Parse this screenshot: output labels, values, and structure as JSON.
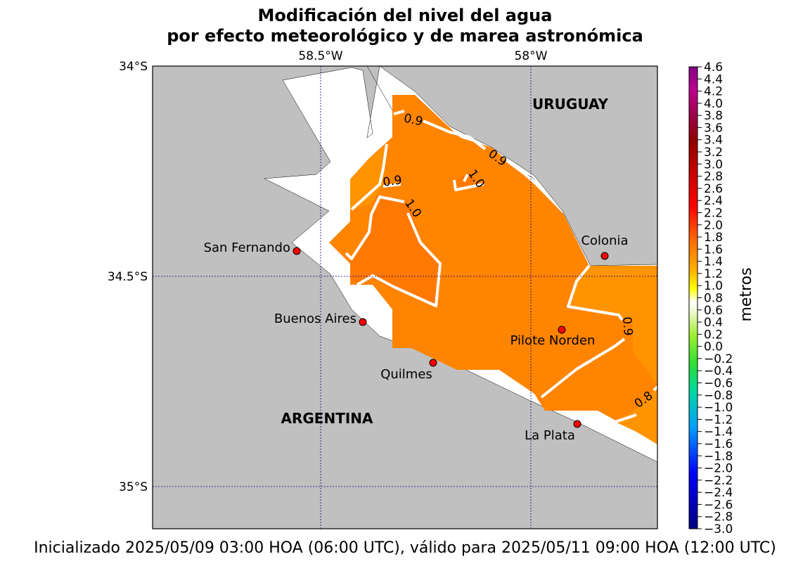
{
  "title": {
    "line1": "Modificación del nivel del agua",
    "line2": "por efecto meteorológico y de marea astronómica"
  },
  "footer": "Inicializado 2025/05/09 03:00 HOA (06:00 UTC), válido para 2025/05/11 09:00 HOA (12:00 UTC)",
  "map": {
    "lon_labels": [
      "58.5°W",
      "58°W"
    ],
    "lat_labels": [
      "34°S",
      "34.5°S",
      "35°S"
    ],
    "countries": [
      "URUGUAY",
      "ARGENTINA"
    ],
    "stations": [
      {
        "name": "San Fernando"
      },
      {
        "name": "Buenos Aires"
      },
      {
        "name": "Quilmes"
      },
      {
        "name": "Colonia"
      },
      {
        "name": "Pilote Norden"
      },
      {
        "name": "La Plata"
      }
    ],
    "contour_labels": [
      "0.9",
      "0.9",
      "0.9",
      "1.0",
      "1.0",
      "0.9",
      "0.8"
    ],
    "colors": {
      "land": "#c0c0c0",
      "water_low": "#ff9400",
      "water_mid": "#ff8400",
      "water_high": "#ff7800",
      "station": "#ff0000",
      "grid": "#00008b"
    }
  },
  "colorbar": {
    "label": "metros",
    "ticks": [
      "4.6",
      "4.4",
      "4.2",
      "4.0",
      "3.8",
      "3.6",
      "3.4",
      "3.2",
      "3.0",
      "2.8",
      "2.6",
      "2.4",
      "2.2",
      "2.0",
      "1.8",
      "1.6",
      "1.4",
      "1.2",
      "1.0",
      "0.8",
      "0.6",
      "0.4",
      "0.2",
      "0.0",
      "−0.2",
      "−0.4",
      "−0.6",
      "−0.8",
      "−1.0",
      "−1.2",
      "−1.4",
      "−1.6",
      "−1.8",
      "−2.0",
      "−2.2",
      "−2.4",
      "−2.6",
      "−2.8",
      "−3.0"
    ]
  }
}
